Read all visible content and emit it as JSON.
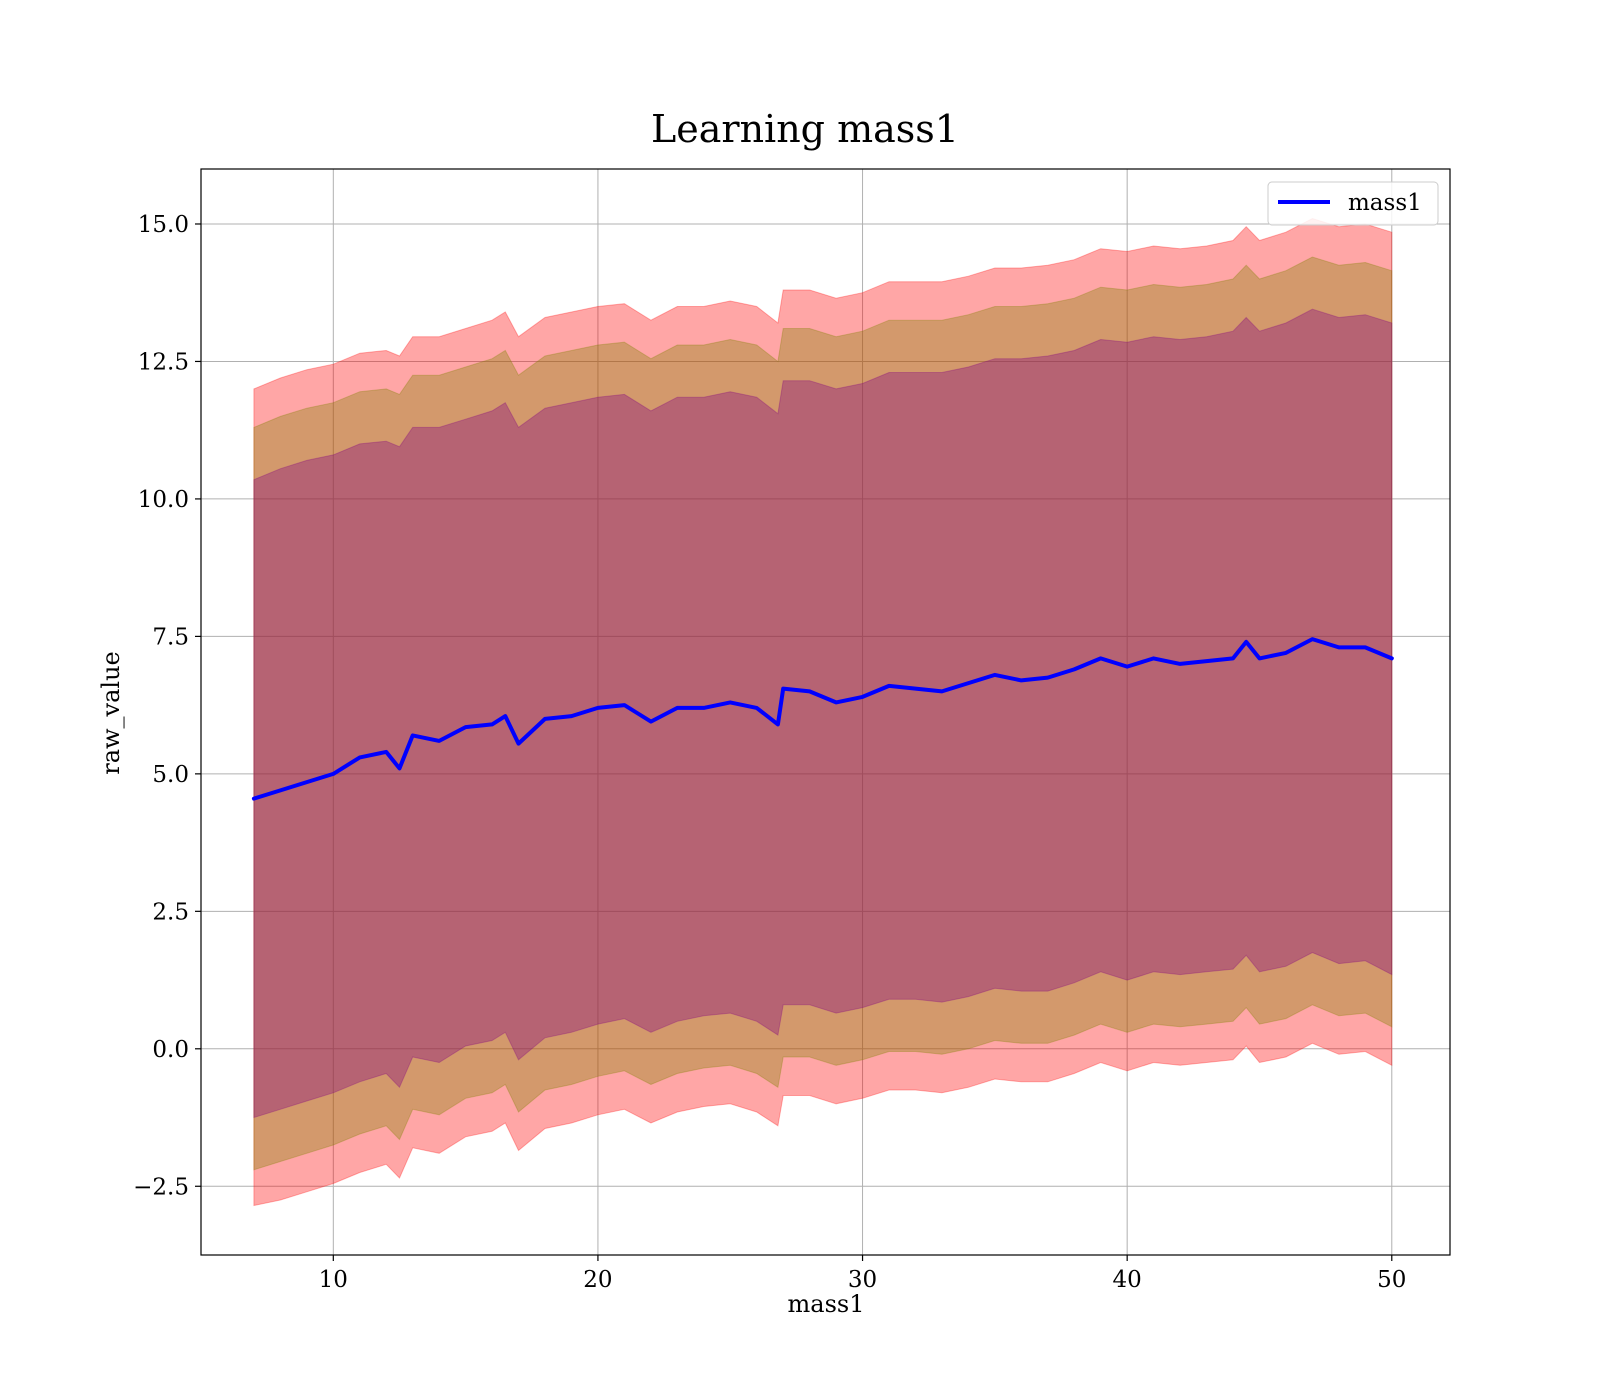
{
  "chart_data": {
    "type": "area",
    "title": "Learning mass1",
    "xlabel": "mass1",
    "ylabel": "raw_value",
    "xlim": [
      5,
      52.2
    ],
    "ylim": [
      -3.75,
      16
    ],
    "xticks": [
      10,
      20,
      30,
      40,
      50
    ],
    "xtick_labels": [
      "10",
      "20",
      "30",
      "40",
      "50"
    ],
    "yticks": [
      -2.5,
      0,
      2.5,
      5,
      7.5,
      10,
      12.5,
      15
    ],
    "ytick_labels": [
      "−2.5",
      "0.0",
      "2.5",
      "5.0",
      "7.5",
      "10.0",
      "12.5",
      "15.0"
    ],
    "grid": true,
    "legend": {
      "position": "top-right",
      "entries": [
        "mass1"
      ]
    },
    "x": [
      7.0,
      8,
      9,
      10,
      11,
      12,
      12.5,
      13,
      14,
      15,
      16,
      16.5,
      17,
      18,
      19,
      20,
      21,
      22,
      23,
      24,
      25,
      26,
      26.8,
      27,
      28,
      29,
      30,
      31,
      32,
      33,
      34,
      35,
      36,
      37,
      38,
      39,
      40,
      41,
      42,
      43,
      44,
      44.5,
      45,
      46,
      47,
      48,
      49,
      50
    ],
    "series": [
      {
        "name": "mass1",
        "color": "#0000ff",
        "values": [
          4.55,
          4.7,
          4.85,
          5.0,
          5.3,
          5.4,
          5.1,
          5.7,
          5.6,
          5.85,
          5.9,
          6.05,
          5.55,
          6.0,
          6.05,
          6.2,
          6.25,
          5.95,
          6.2,
          6.2,
          6.3,
          6.2,
          5.9,
          6.55,
          6.5,
          6.3,
          6.4,
          6.6,
          6.55,
          6.5,
          6.65,
          6.8,
          6.7,
          6.75,
          6.9,
          7.1,
          6.95,
          7.1,
          7.0,
          7.05,
          7.1,
          7.4,
          7.1,
          7.2,
          7.45,
          7.3,
          7.3,
          7.1
        ]
      }
    ],
    "bands": [
      {
        "color": "#ff0000",
        "upper": [
          12.0,
          12.2,
          12.35,
          12.45,
          12.65,
          12.7,
          12.6,
          12.95,
          12.95,
          13.1,
          13.25,
          13.4,
          12.95,
          13.3,
          13.4,
          13.5,
          13.55,
          13.25,
          13.5,
          13.5,
          13.6,
          13.5,
          13.2,
          13.8,
          13.8,
          13.65,
          13.75,
          13.95,
          13.95,
          13.95,
          14.05,
          14.2,
          14.2,
          14.25,
          14.35,
          14.55,
          14.5,
          14.6,
          14.55,
          14.6,
          14.7,
          14.95,
          14.7,
          14.85,
          15.1,
          14.95,
          15.0,
          14.85
        ],
        "lower": [
          -2.85,
          -2.75,
          -2.6,
          -2.45,
          -2.25,
          -2.1,
          -2.35,
          -1.8,
          -1.9,
          -1.6,
          -1.5,
          -1.35,
          -1.85,
          -1.45,
          -1.35,
          -1.2,
          -1.1,
          -1.35,
          -1.15,
          -1.05,
          -1.0,
          -1.15,
          -1.4,
          -0.85,
          -0.85,
          -1.0,
          -0.9,
          -0.75,
          -0.75,
          -0.8,
          -0.7,
          -0.55,
          -0.6,
          -0.6,
          -0.45,
          -0.25,
          -0.4,
          -0.25,
          -0.3,
          -0.25,
          -0.2,
          0.05,
          -0.25,
          -0.15,
          0.1,
          -0.1,
          -0.05,
          -0.3
        ]
      },
      {
        "color": "#808000",
        "upper": [
          11.3,
          11.5,
          11.65,
          11.75,
          11.95,
          12.0,
          11.9,
          12.25,
          12.25,
          12.4,
          12.55,
          12.7,
          12.25,
          12.6,
          12.7,
          12.8,
          12.85,
          12.55,
          12.8,
          12.8,
          12.9,
          12.8,
          12.5,
          13.1,
          13.1,
          12.95,
          13.05,
          13.25,
          13.25,
          13.25,
          13.35,
          13.5,
          13.5,
          13.55,
          13.65,
          13.85,
          13.8,
          13.9,
          13.85,
          13.9,
          14.0,
          14.25,
          14.0,
          14.15,
          14.4,
          14.25,
          14.3,
          14.15
        ],
        "lower": [
          -2.2,
          -2.05,
          -1.9,
          -1.75,
          -1.55,
          -1.4,
          -1.65,
          -1.1,
          -1.2,
          -0.9,
          -0.8,
          -0.65,
          -1.15,
          -0.75,
          -0.65,
          -0.5,
          -0.4,
          -0.65,
          -0.45,
          -0.35,
          -0.3,
          -0.45,
          -0.7,
          -0.15,
          -0.15,
          -0.3,
          -0.2,
          -0.05,
          -0.05,
          -0.1,
          0.0,
          0.15,
          0.1,
          0.1,
          0.25,
          0.45,
          0.3,
          0.45,
          0.4,
          0.45,
          0.5,
          0.75,
          0.45,
          0.55,
          0.8,
          0.6,
          0.65,
          0.4
        ]
      },
      {
        "color": "#800080",
        "upper": [
          10.35,
          10.55,
          10.7,
          10.8,
          11.0,
          11.05,
          10.95,
          11.3,
          11.3,
          11.45,
          11.6,
          11.75,
          11.3,
          11.65,
          11.75,
          11.85,
          11.9,
          11.6,
          11.85,
          11.85,
          11.95,
          11.85,
          11.55,
          12.15,
          12.15,
          12.0,
          12.1,
          12.3,
          12.3,
          12.3,
          12.4,
          12.55,
          12.55,
          12.6,
          12.7,
          12.9,
          12.85,
          12.95,
          12.9,
          12.95,
          13.05,
          13.3,
          13.05,
          13.2,
          13.45,
          13.3,
          13.35,
          13.2
        ],
        "lower": [
          -1.25,
          -1.1,
          -0.95,
          -0.8,
          -0.6,
          -0.45,
          -0.7,
          -0.15,
          -0.25,
          0.05,
          0.15,
          0.3,
          -0.2,
          0.2,
          0.3,
          0.45,
          0.55,
          0.3,
          0.5,
          0.6,
          0.65,
          0.5,
          0.25,
          0.8,
          0.8,
          0.65,
          0.75,
          0.9,
          0.9,
          0.85,
          0.95,
          1.1,
          1.05,
          1.05,
          1.2,
          1.4,
          1.25,
          1.4,
          1.35,
          1.4,
          1.45,
          1.7,
          1.4,
          1.5,
          1.75,
          1.55,
          1.6,
          1.35
        ]
      }
    ]
  }
}
